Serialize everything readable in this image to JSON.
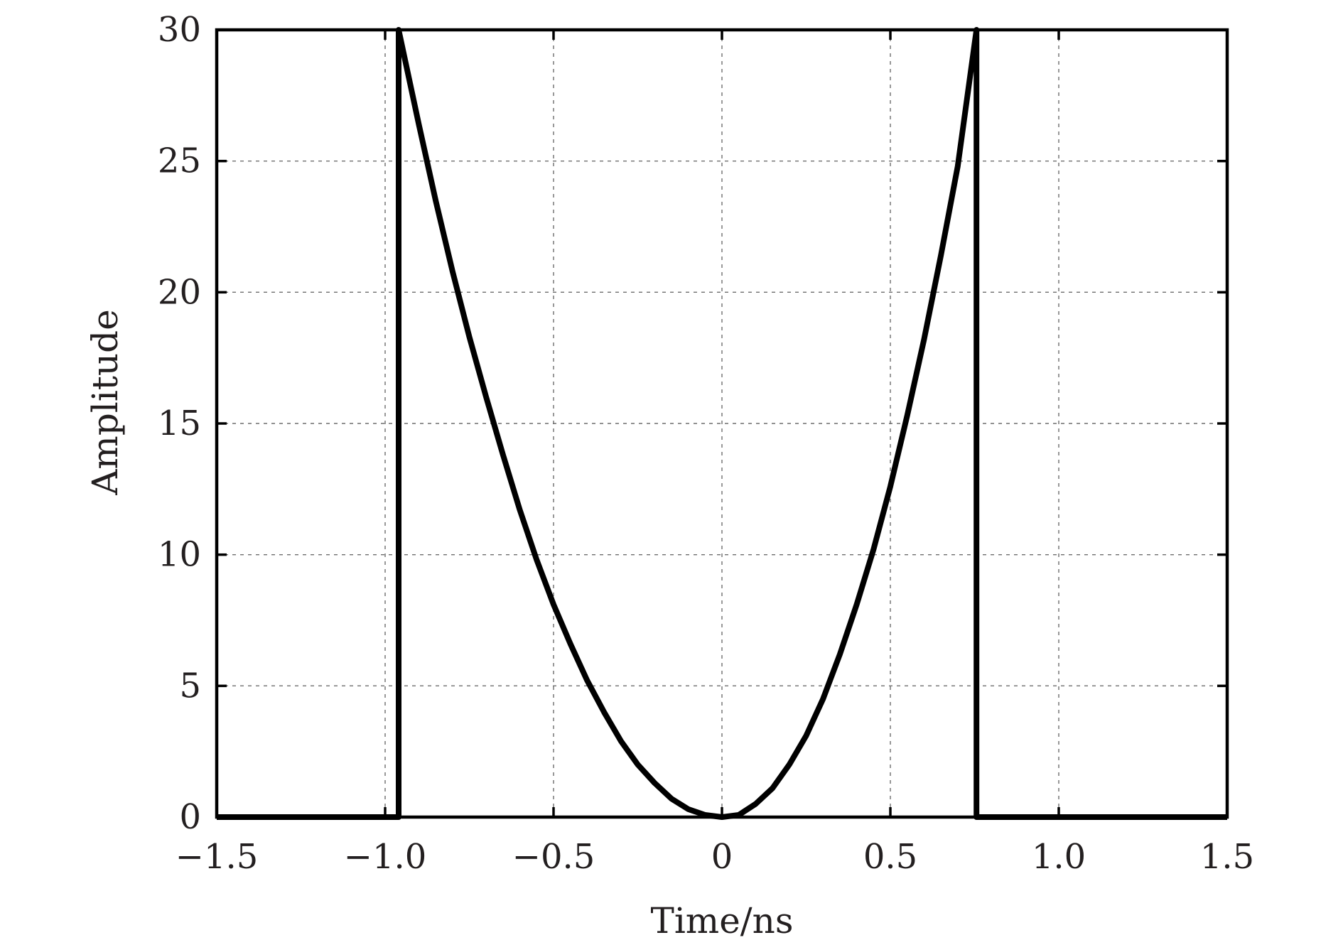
{
  "chart_data": {
    "type": "line",
    "title": "",
    "xlabel": "Time/ns",
    "ylabel": "Amplitude",
    "xlim": [
      -1.5,
      1.5
    ],
    "ylim": [
      0,
      30
    ],
    "grid": true,
    "x_ticks": [
      -1.5,
      -1.0,
      -0.5,
      0,
      0.5,
      1.0,
      1.5
    ],
    "x_tick_labels": [
      "−1.5",
      "−1.0",
      "−0.5",
      "0",
      "0.5",
      "1.0",
      "1.5"
    ],
    "y_ticks": [
      0,
      5,
      10,
      15,
      20,
      25,
      30
    ],
    "y_tick_labels": [
      "0",
      "5",
      "10",
      "15",
      "20",
      "25",
      "30"
    ],
    "series": [
      {
        "color": "#000000",
        "x": [
          -1.5,
          -0.9599,
          -0.9599,
          -0.9,
          -0.85,
          -0.8,
          -0.75,
          -0.7,
          -0.65,
          -0.6,
          -0.55,
          -0.5,
          -0.45,
          -0.4,
          -0.35,
          -0.3,
          -0.25,
          -0.2,
          -0.15,
          -0.1,
          -0.05,
          0,
          0.05,
          0.1,
          0.15,
          0.2,
          0.25,
          0.3,
          0.35,
          0.4,
          0.45,
          0.5,
          0.55,
          0.6,
          0.65,
          0.7,
          0.7558,
          0.7558,
          1.5
        ],
        "y": [
          0,
          0,
          30,
          26.4,
          23.5,
          20.8,
          18.3,
          16.0,
          13.8,
          11.7,
          9.8,
          8.1,
          6.6,
          5.2,
          4.0,
          2.9,
          2.0,
          1.3,
          0.7,
          0.3,
          0.08,
          0,
          0.08,
          0.5,
          1.1,
          2.0,
          3.1,
          4.5,
          6.2,
          8.1,
          10.2,
          12.6,
          15.3,
          18.2,
          21.4,
          24.8,
          30,
          0,
          0
        ]
      }
    ]
  }
}
